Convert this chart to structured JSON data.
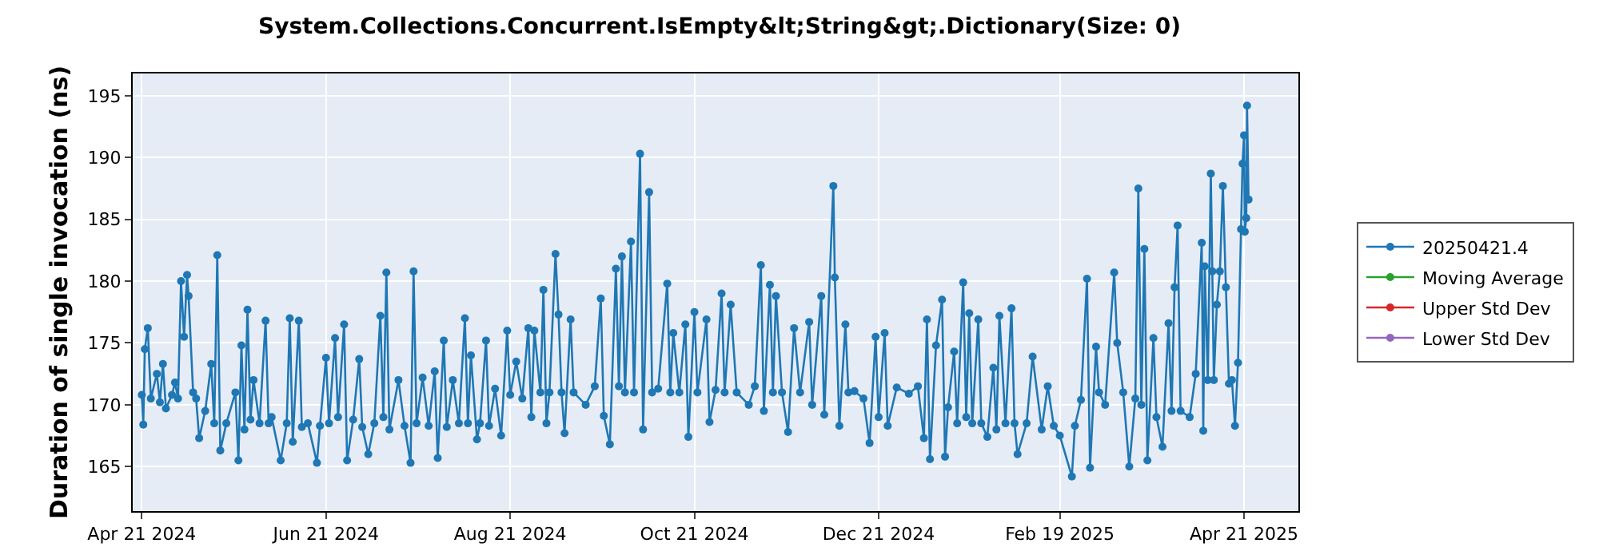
{
  "chart_data": {
    "type": "line",
    "title": "System.Collections.Concurrent.IsEmpty&lt;String&gt;.Dictionary(Size: 0)",
    "ylabel": "Duration of single invocation (ns)",
    "x": [
      "2024-04-21",
      "2024-04-21T12:00",
      "2024-04-22",
      "2024-04-23",
      "2024-04-24",
      "2024-04-26",
      "2024-04-27",
      "2024-04-28",
      "2024-04-29",
      "2024-05-01",
      "2024-05-02",
      "2024-05-03",
      "2024-05-04",
      "2024-05-05",
      "2024-05-06",
      "2024-05-06T12:00",
      "2024-05-08",
      "2024-05-09",
      "2024-05-10",
      "2024-05-12",
      "2024-05-14",
      "2024-05-15",
      "2024-05-16",
      "2024-05-17",
      "2024-05-19",
      "2024-05-22",
      "2024-05-23",
      "2024-05-24",
      "2024-05-25",
      "2024-05-26",
      "2024-05-27",
      "2024-05-28",
      "2024-05-30",
      "2024-06-01",
      "2024-06-02",
      "2024-06-03",
      "2024-06-06",
      "2024-06-08",
      "2024-06-09",
      "2024-06-10",
      "2024-06-12",
      "2024-06-13",
      "2024-06-15",
      "2024-06-18",
      "2024-06-19",
      "2024-06-21",
      "2024-06-22",
      "2024-06-24",
      "2024-06-25",
      "2024-06-27",
      "2024-06-28",
      "2024-06-30",
      "2024-07-02",
      "2024-07-03",
      "2024-07-05",
      "2024-07-07",
      "2024-07-09",
      "2024-07-10",
      "2024-07-11",
      "2024-07-12",
      "2024-07-15",
      "2024-07-17",
      "2024-07-19",
      "2024-07-20",
      "2024-07-21",
      "2024-07-23",
      "2024-07-25",
      "2024-07-27",
      "2024-07-28",
      "2024-07-30",
      "2024-07-31",
      "2024-08-02",
      "2024-08-04",
      "2024-08-06",
      "2024-08-07",
      "2024-08-08",
      "2024-08-10",
      "2024-08-11",
      "2024-08-13",
      "2024-08-14",
      "2024-08-16",
      "2024-08-18",
      "2024-08-20",
      "2024-08-21",
      "2024-08-23",
      "2024-08-25",
      "2024-08-27",
      "2024-08-28",
      "2024-08-29",
      "2024-08-31",
      "2024-09-01",
      "2024-09-02",
      "2024-09-03",
      "2024-09-05",
      "2024-09-06",
      "2024-09-07",
      "2024-09-08",
      "2024-09-10",
      "2024-09-11",
      "2024-09-15",
      "2024-09-18",
      "2024-09-20",
      "2024-09-21",
      "2024-09-23",
      "2024-09-25",
      "2024-09-26",
      "2024-09-27",
      "2024-09-28",
      "2024-09-30",
      "2024-10-01",
      "2024-10-03",
      "2024-10-04",
      "2024-10-06",
      "2024-10-07",
      "2024-10-09",
      "2024-10-12",
      "2024-10-13",
      "2024-10-14",
      "2024-10-16",
      "2024-10-18",
      "2024-10-19",
      "2024-10-21",
      "2024-10-22",
      "2024-10-25",
      "2024-10-26",
      "2024-10-28",
      "2024-10-30",
      "2024-10-31",
      "2024-11-02",
      "2024-11-04",
      "2024-11-08",
      "2024-11-10",
      "2024-11-12",
      "2024-11-13",
      "2024-11-15",
      "2024-11-16",
      "2024-11-17",
      "2024-11-19",
      "2024-11-21",
      "2024-11-23",
      "2024-11-25",
      "2024-11-28",
      "2024-11-29",
      "2024-12-02",
      "2024-12-03",
      "2024-12-06",
      "2024-12-06T12:00",
      "2024-12-08",
      "2024-12-10",
      "2024-12-11",
      "2024-12-13",
      "2024-12-16",
      "2024-12-18",
      "2024-12-20",
      "2024-12-21",
      "2024-12-23",
      "2024-12-24",
      "2024-12-27",
      "2024-12-31",
      "2025-01-03",
      "2025-01-05",
      "2025-01-06",
      "2025-01-07",
      "2025-01-09",
      "2025-01-11",
      "2025-01-12",
      "2025-01-13",
      "2025-01-15",
      "2025-01-16",
      "2025-01-18",
      "2025-01-19",
      "2025-01-20",
      "2025-01-21",
      "2025-01-23",
      "2025-01-24",
      "2025-01-26",
      "2025-01-28",
      "2025-01-29",
      "2025-01-30",
      "2025-02-01",
      "2025-02-03",
      "2025-02-04",
      "2025-02-05",
      "2025-02-08",
      "2025-02-10",
      "2025-02-13",
      "2025-02-15",
      "2025-02-17",
      "2025-02-19",
      "2025-02-23",
      "2025-02-24",
      "2025-02-26",
      "2025-02-28",
      "2025-03-01",
      "2025-03-03",
      "2025-03-04",
      "2025-03-06",
      "2025-03-09",
      "2025-03-10",
      "2025-03-12",
      "2025-03-14",
      "2025-03-16",
      "2025-03-17",
      "2025-03-18",
      "2025-03-19",
      "2025-03-20",
      "2025-03-22",
      "2025-03-23",
      "2025-03-25",
      "2025-03-27",
      "2025-03-28",
      "2025-03-29",
      "2025-03-30",
      "2025-03-31",
      "2025-04-03",
      "2025-04-05",
      "2025-04-07",
      "2025-04-07T12:00",
      "2025-04-08",
      "2025-04-09",
      "2025-04-10",
      "2025-04-10T12:00",
      "2025-04-11",
      "2025-04-12",
      "2025-04-13",
      "2025-04-14",
      "2025-04-15",
      "2025-04-16",
      "2025-04-17",
      "2025-04-18",
      "2025-04-19",
      "2025-04-20",
      "2025-04-20T12:00",
      "2025-04-21",
      "2025-04-21T06:00",
      "2025-04-21T18:00",
      "2025-04-22",
      "2025-04-22T12:00"
    ],
    "series": [
      {
        "name": "20250421.4",
        "color": "#1f77b4",
        "values": [
          170.8,
          168.4,
          174.5,
          176.2,
          170.5,
          172.5,
          170.2,
          173.3,
          169.7,
          170.8,
          171.8,
          170.5,
          180,
          175.5,
          180.5,
          178.8,
          171,
          170.5,
          167.3,
          169.5,
          173.3,
          168.5,
          182.1,
          166.3,
          168.5,
          171,
          165.5,
          174.8,
          168,
          177.7,
          168.8,
          172,
          168.5,
          176.8,
          168.5,
          169,
          165.5,
          168.5,
          177,
          167,
          176.8,
          168.2,
          168.5,
          165.3,
          168.3,
          173.8,
          168.5,
          175.4,
          169,
          176.5,
          165.5,
          168.8,
          173.7,
          168.2,
          166,
          168.5,
          177.2,
          169,
          180.7,
          168,
          172,
          168.3,
          165.3,
          180.8,
          168.5,
          172.2,
          168.3,
          172.7,
          165.7,
          175.2,
          168.2,
          172,
          168.5,
          177,
          168.5,
          174,
          167.2,
          168.5,
          175.2,
          168.3,
          171.3,
          167.5,
          176,
          170.8,
          173.5,
          170.5,
          176.2,
          169,
          176,
          171,
          179.3,
          168.5,
          171,
          182.2,
          177.3,
          171,
          167.7,
          176.9,
          171,
          170,
          171.5,
          178.6,
          169.1,
          166.8,
          181,
          171.5,
          182,
          171,
          183.2,
          171,
          190.3,
          168,
          187.2,
          171,
          171.3,
          179.8,
          171,
          175.8,
          171,
          176.5,
          167.4,
          177.5,
          171,
          176.9,
          168.6,
          171.2,
          179,
          171,
          178.1,
          171,
          170,
          171.5,
          181.3,
          169.5,
          179.7,
          171,
          178.8,
          171,
          167.8,
          176.2,
          171,
          176.7,
          170,
          178.8,
          169.2,
          187.7,
          180.3,
          168.3,
          176.5,
          171,
          171.1,
          170.5,
          166.9,
          175.5,
          169,
          175.8,
          168.3,
          171.4,
          170.9,
          171.5,
          167.3,
          176.9,
          165.6,
          174.8,
          178.5,
          165.8,
          169.8,
          174.3,
          168.5,
          179.9,
          169,
          177.4,
          168.5,
          176.9,
          168.5,
          167.4,
          173,
          168,
          177.2,
          168.5,
          177.8,
          168.5,
          166,
          168.5,
          173.9,
          168,
          171.5,
          168.3,
          167.5,
          164.2,
          168.3,
          170.4,
          180.2,
          164.9,
          174.7,
          171,
          170,
          180.7,
          175,
          171,
          165,
          170.5,
          187.5,
          170,
          182.6,
          165.5,
          175.4,
          169,
          166.6,
          176.6,
          169.5,
          179.5,
          184.5,
          169.5,
          169,
          172.5,
          183.1,
          167.9,
          181.2,
          172,
          188.7,
          180.8,
          172,
          178.1,
          180.8,
          187.7,
          179.5,
          171.7,
          172,
          168.3,
          173.4,
          184.2,
          189.5,
          191.8,
          184,
          185.1,
          194.2,
          186.6
        ]
      },
      {
        "name": "Moving Average",
        "color": "#2ca02c",
        "values": [
          null,
          null,
          null,
          null,
          null,
          null,
          null,
          null,
          null,
          null,
          null,
          null,
          null,
          null,
          null,
          null,
          null,
          null,
          null,
          null,
          null,
          null,
          null,
          null,
          null,
          null,
          null,
          null,
          null,
          null,
          null,
          null,
          null,
          null,
          null,
          null,
          null,
          null,
          null,
          null,
          null,
          null,
          null,
          null,
          null,
          null,
          null,
          null,
          null,
          null,
          null,
          null,
          null,
          null,
          null,
          null,
          null,
          null,
          null,
          null,
          null,
          null,
          null,
          null,
          null,
          null,
          null,
          null,
          null,
          null,
          null,
          null,
          null,
          null,
          null,
          null,
          null,
          null,
          null,
          null,
          null,
          null,
          null,
          null,
          null,
          null,
          null,
          null,
          null,
          null,
          null,
          null,
          null,
          null,
          null,
          null,
          null,
          null,
          null,
          null,
          null,
          null,
          null,
          null,
          null,
          null,
          null,
          null,
          null,
          null,
          null,
          null,
          null,
          null,
          null,
          null,
          null,
          null,
          null,
          null,
          null,
          null,
          null,
          null,
          null,
          null,
          null,
          null,
          null,
          null,
          null,
          null,
          null,
          null,
          null,
          null,
          null,
          null,
          null,
          null,
          null,
          null,
          null,
          null,
          null,
          null,
          null,
          null,
          null,
          null,
          null,
          null,
          null,
          null,
          null,
          null,
          null,
          null,
          null,
          null,
          null,
          null,
          null,
          null,
          null,
          null,
          null,
          null,
          null,
          null,
          null,
          null,
          null,
          null,
          null,
          null,
          null,
          null,
          null,
          null,
          null,
          null,
          null,
          null,
          null,
          null,
          null,
          null,
          null,
          null,
          null,
          null,
          null,
          null,
          null,
          null,
          null,
          null,
          null,
          null,
          null,
          null,
          null,
          null,
          null,
          null,
          null,
          null,
          null,
          null,
          null,
          null,
          null,
          null,
          null,
          null,
          null,
          null,
          null,
          null,
          null,
          null,
          null,
          null,
          null,
          null,
          null,
          null,
          null,
          null,
          null,
          null,
          null,
          null,
          null,
          null,
          null,
          null
        ]
      },
      {
        "name": "Upper Std Dev",
        "color": "#d62728",
        "values": [
          null,
          null,
          null,
          null,
          null,
          null,
          null,
          null,
          null,
          null,
          null,
          null,
          null,
          null,
          null,
          null,
          null,
          null,
          null,
          null,
          null,
          null,
          null,
          null,
          null,
          null,
          null,
          null,
          null,
          null,
          null,
          null,
          null,
          null,
          null,
          null,
          null,
          null,
          null,
          null,
          null,
          null,
          null,
          null,
          null,
          null,
          null,
          null,
          null,
          null,
          null,
          null,
          null,
          null,
          null,
          null,
          null,
          null,
          null,
          null,
          null,
          null,
          null,
          null,
          null,
          null,
          null,
          null,
          null,
          null,
          null,
          null,
          null,
          null,
          null,
          null,
          null,
          null,
          null,
          null,
          null,
          null,
          null,
          null,
          null,
          null,
          null,
          null,
          null,
          null,
          null,
          null,
          null,
          null,
          null,
          null,
          null,
          null,
          null,
          null,
          null,
          null,
          null,
          null,
          null,
          null,
          null,
          null,
          null,
          null,
          null,
          null,
          null,
          null,
          null,
          null,
          null,
          null,
          null,
          null,
          null,
          null,
          null,
          null,
          null,
          null,
          null,
          null,
          null,
          null,
          null,
          null,
          null,
          null,
          null,
          null,
          null,
          null,
          null,
          null,
          null,
          null,
          null,
          null,
          null,
          null,
          null,
          null,
          null,
          null,
          null,
          null,
          null,
          null,
          null,
          null,
          null,
          null,
          null,
          null,
          null,
          null,
          null,
          null,
          null,
          null,
          null,
          null,
          null,
          null,
          null,
          null,
          null,
          null,
          null,
          null,
          null,
          null,
          null,
          null,
          null,
          null,
          null,
          null,
          null,
          null,
          null,
          null,
          null,
          null,
          null,
          null,
          null,
          null,
          null,
          null,
          null,
          null,
          null,
          null,
          null,
          null,
          null,
          null,
          null,
          null,
          null,
          null,
          null,
          null,
          null,
          null,
          null,
          null,
          null,
          null,
          null,
          null,
          null,
          null,
          null,
          null,
          null,
          null,
          null,
          null,
          null,
          null,
          null,
          null,
          null,
          null,
          null,
          null,
          null,
          null,
          null,
          null
        ]
      },
      {
        "name": "Lower Std Dev",
        "color": "#9467bd",
        "values": [
          null,
          null,
          null,
          null,
          null,
          null,
          null,
          null,
          null,
          null,
          null,
          null,
          null,
          null,
          null,
          null,
          null,
          null,
          null,
          null,
          null,
          null,
          null,
          null,
          null,
          null,
          null,
          null,
          null,
          null,
          null,
          null,
          null,
          null,
          null,
          null,
          null,
          null,
          null,
          null,
          null,
          null,
          null,
          null,
          null,
          null,
          null,
          null,
          null,
          null,
          null,
          null,
          null,
          null,
          null,
          null,
          null,
          null,
          null,
          null,
          null,
          null,
          null,
          null,
          null,
          null,
          null,
          null,
          null,
          null,
          null,
          null,
          null,
          null,
          null,
          null,
          null,
          null,
          null,
          null,
          null,
          null,
          null,
          null,
          null,
          null,
          null,
          null,
          null,
          null,
          null,
          null,
          null,
          null,
          null,
          null,
          null,
          null,
          null,
          null,
          null,
          null,
          null,
          null,
          null,
          null,
          null,
          null,
          null,
          null,
          null,
          null,
          null,
          null,
          null,
          null,
          null,
          null,
          null,
          null,
          null,
          null,
          null,
          null,
          null,
          null,
          null,
          null,
          null,
          null,
          null,
          null,
          null,
          null,
          null,
          null,
          null,
          null,
          null,
          null,
          null,
          null,
          null,
          null,
          null,
          null,
          null,
          null,
          null,
          null,
          null,
          null,
          null,
          null,
          null,
          null,
          null,
          null,
          null,
          null,
          null,
          null,
          null,
          null,
          null,
          null,
          null,
          null,
          null,
          null,
          null,
          null,
          null,
          null,
          null,
          null,
          null,
          null,
          null,
          null,
          null,
          null,
          null,
          null,
          null,
          null,
          null,
          null,
          null,
          null,
          null,
          null,
          null,
          null,
          null,
          null,
          null,
          null,
          null,
          null,
          null,
          null,
          null,
          null,
          null,
          null,
          null,
          null,
          null,
          null,
          null,
          null,
          null,
          null,
          null,
          null,
          null,
          null,
          null,
          null,
          null,
          null,
          null,
          null,
          null,
          null,
          null,
          null,
          null,
          null,
          null,
          null,
          null,
          null,
          null,
          null,
          null,
          null
        ]
      }
    ],
    "xlim": [
      "2024-04-18",
      "2025-05-09"
    ],
    "xticks": [
      {
        "value": "2024-04-21",
        "label": "Apr 21 2024"
      },
      {
        "value": "2024-06-21",
        "label": "Jun 21 2024"
      },
      {
        "value": "2024-08-21",
        "label": "Aug 21 2024"
      },
      {
        "value": "2024-10-21",
        "label": "Oct 21 2024"
      },
      {
        "value": "2024-12-21",
        "label": "Dec 21 2024"
      },
      {
        "value": "2025-02-19",
        "label": "Feb 19 2025"
      },
      {
        "value": "2025-04-21",
        "label": "Apr 21 2025"
      }
    ],
    "ylim": [
      161.4,
      196.8
    ],
    "yticks": [
      165,
      170,
      175,
      180,
      185,
      190,
      195
    ],
    "grid": true,
    "legend": "right",
    "marker": "circle",
    "line_style": "solid"
  }
}
